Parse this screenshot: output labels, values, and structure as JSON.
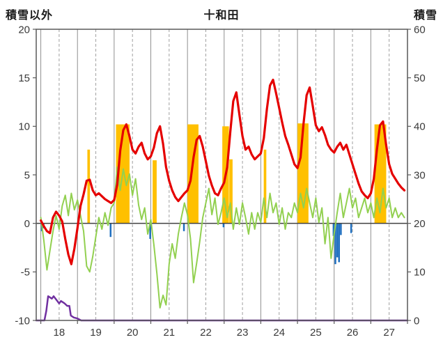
{
  "header": {
    "left_axis_label": "積雪以外",
    "title": "十和田",
    "right_axis_label": "積雪"
  },
  "chart_data": {
    "type": "line",
    "title": "十和田",
    "grid": "vertical-daily-solid-halfday-dashed",
    "legend": "none",
    "left_axis": {
      "label": "積雪以外",
      "min": -10,
      "max": 20,
      "ticks": [
        20,
        15,
        10,
        5,
        0,
        -5,
        -10
      ]
    },
    "right_axis": {
      "label": "積雪",
      "min": 0,
      "max": 60,
      "ticks": [
        60,
        50,
        40,
        30,
        20,
        10,
        0
      ]
    },
    "x_axis": {
      "min": 17.875,
      "max": 28,
      "day_lines": [
        18,
        19,
        20,
        21,
        22,
        23,
        24,
        25,
        26,
        27,
        28
      ],
      "half_day_lines": [
        18.5,
        19.5,
        20.5,
        21.5,
        22.5,
        23.5,
        24.5,
        25.5,
        26.5,
        27.5
      ],
      "tick_labels": [
        "18",
        "19",
        "20",
        "21",
        "22",
        "23",
        "24",
        "25",
        "26",
        "27"
      ],
      "tick_label_centers": [
        18.5,
        19.5,
        20.5,
        21.5,
        22.5,
        23.5,
        24.5,
        25.5,
        26.5,
        27.5
      ]
    },
    "colors": {
      "red_line": "#e50000",
      "green_line": "#92d050",
      "orange_bars": "#ffc000",
      "blue_bars": "#1f6fc0",
      "purple_line": "#7030a0",
      "grid_solid": "#8f8f8f",
      "grid_dashed": "#a0a0a0",
      "zero_line": "#404040",
      "border": "#595959"
    },
    "series": [
      {
        "name": "red-line",
        "type": "line",
        "axis": "left",
        "color": "#e50000",
        "width": 3.2,
        "x_start": 18.0,
        "x_step": 0.083333,
        "values": [
          0.3,
          -0.3,
          -0.8,
          -1.0,
          0.6,
          1.2,
          0.8,
          0.2,
          -1.6,
          -3.2,
          -4.2,
          -2.6,
          -0.5,
          1.8,
          3.0,
          4.4,
          4.5,
          3.4,
          2.9,
          3.1,
          2.8,
          2.5,
          2.3,
          2.1,
          2.4,
          4.0,
          7.5,
          9.6,
          10.2,
          9.0,
          7.6,
          7.2,
          7.9,
          8.3,
          7.2,
          6.6,
          6.9,
          7.8,
          9.3,
          10.0,
          8.2,
          5.8,
          4.4,
          3.4,
          2.7,
          2.3,
          2.7,
          3.1,
          3.4,
          4.4,
          6.8,
          8.6,
          9.0,
          7.9,
          6.4,
          4.9,
          3.9,
          3.1,
          2.9,
          3.6,
          4.2,
          5.8,
          9.4,
          12.6,
          13.5,
          11.2,
          9.0,
          7.6,
          7.9,
          7.1,
          6.6,
          6.9,
          7.2,
          8.8,
          11.8,
          14.2,
          14.8,
          13.4,
          11.9,
          10.4,
          9.0,
          8.1,
          7.1,
          6.1,
          5.7,
          6.8,
          10.3,
          13.2,
          14.0,
          12.1,
          10.1,
          9.5,
          9.9,
          9.1,
          8.1,
          7.6,
          7.3,
          7.9,
          8.3,
          7.6,
          8.1,
          7.1,
          6.1,
          5.1,
          4.1,
          3.3,
          2.9,
          2.6,
          3.1,
          4.6,
          7.6,
          10.1,
          10.5,
          8.1,
          6.1,
          5.1,
          4.6,
          4.1,
          3.7,
          3.4
        ]
      },
      {
        "name": "green-line",
        "type": "line",
        "axis": "left",
        "color": "#92d050",
        "width": 2,
        "x_start": 18.0,
        "x_step": 0.083333,
        "values": [
          0.6,
          -1.8,
          -4.8,
          -2.8,
          -0.8,
          0.8,
          -0.6,
          1.8,
          2.9,
          0.8,
          3.1,
          1.4,
          2.4,
          0.8,
          -0.8,
          -4.4,
          -5.0,
          -3.4,
          -1.4,
          0.6,
          -0.6,
          1.1,
          -0.2,
          1.6,
          2.1,
          5.8,
          3.4,
          5.6,
          3.9,
          5.1,
          2.9,
          4.6,
          1.9,
          0.4,
          1.6,
          -1.1,
          0.4,
          -2.2,
          -5.2,
          -8.7,
          -7.4,
          -8.4,
          -4.2,
          -2.1,
          -3.6,
          -1.1,
          0.6,
          2.1,
          0.9,
          -1.6,
          -6.1,
          -4.1,
          -1.9,
          0.6,
          2.1,
          3.6,
          0.9,
          2.6,
          -0.1,
          1.1,
          2.6,
          0.6,
          2.1,
          -0.6,
          1.6,
          -0.1,
          2.1,
          0.6,
          -1.1,
          1.1,
          -0.6,
          1.1,
          0.1,
          2.6,
          0.6,
          3.1,
          1.1,
          2.1,
          -0.1,
          1.6,
          -0.6,
          1.1,
          0.6,
          2.1,
          1.1,
          3.1,
          1.6,
          3.6,
          2.1,
          0.6,
          2.6,
          0.1,
          1.6,
          -2.1,
          0.6,
          -3.6,
          -1.1,
          1.1,
          3.1,
          0.6,
          2.1,
          3.6,
          1.6,
          2.6,
          0.6,
          1.6,
          2.6,
          1.1,
          2.1,
          0.6,
          2.6,
          1.1,
          3.6,
          1.6,
          2.6,
          0.6,
          1.6,
          0.6,
          1.1,
          0.6
        ]
      },
      {
        "name": "purple-line",
        "type": "line",
        "axis": "right",
        "color": "#7030a0",
        "width": 2.5,
        "points": [
          [
            17.875,
            0
          ],
          [
            18.1,
            0
          ],
          [
            18.15,
            2.0
          ],
          [
            18.2,
            5.0
          ],
          [
            18.3,
            4.5
          ],
          [
            18.35,
            5.0
          ],
          [
            18.45,
            4.0
          ],
          [
            18.5,
            3.5
          ],
          [
            18.55,
            4.0
          ],
          [
            18.65,
            3.5
          ],
          [
            18.72,
            3.0
          ],
          [
            18.78,
            3.0
          ],
          [
            18.82,
            1.0
          ],
          [
            18.9,
            0.6
          ],
          [
            19.0,
            0.4
          ],
          [
            19.1,
            0
          ],
          [
            28.0,
            0
          ]
        ]
      },
      {
        "name": "orange-bars",
        "type": "bar",
        "axis": "left",
        "color": "#ffc000",
        "bars": [
          [
            19.27,
            19.34,
            7.6
          ],
          [
            20.05,
            20.42,
            10.2
          ],
          [
            21.05,
            21.16,
            6.5
          ],
          [
            22.0,
            22.3,
            10.2
          ],
          [
            22.95,
            23.13,
            10.0
          ],
          [
            23.14,
            23.23,
            6.6
          ],
          [
            24.08,
            24.15,
            7.6
          ],
          [
            25.0,
            25.3,
            10.3
          ],
          [
            27.1,
            27.42,
            10.2
          ]
        ]
      },
      {
        "name": "blue-bars",
        "type": "bar",
        "axis": "left",
        "color": "#1f6fc0",
        "bars": [
          [
            18.0,
            18.04,
            -0.8
          ],
          [
            18.05,
            18.09,
            -0.5
          ],
          [
            19.88,
            19.92,
            -1.4
          ],
          [
            20.96,
            21.0,
            -1.6
          ],
          [
            21.88,
            21.92,
            -0.8
          ],
          [
            22.96,
            23.0,
            -0.4
          ],
          [
            25.96,
            26.0,
            -1.3
          ],
          [
            26.01,
            26.05,
            -4.2
          ],
          [
            26.06,
            26.1,
            -3.5
          ],
          [
            26.11,
            26.15,
            -4.0
          ],
          [
            26.16,
            26.2,
            -1.2
          ],
          [
            26.44,
            26.48,
            -1.0
          ]
        ]
      }
    ]
  }
}
